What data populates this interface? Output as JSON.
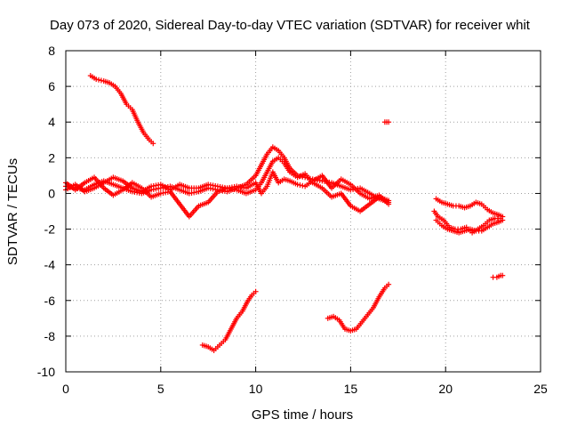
{
  "chart_data": {
    "type": "scatter",
    "title": "Day 073 of 2020, Sidereal Day-to-day VTEC variation (SDTVAR) for receiver whit",
    "xlabel": "GPS time / hours",
    "ylabel": "SDTVAR / TECUs",
    "xlim": [
      0,
      25
    ],
    "ylim": [
      -10,
      8
    ],
    "xticks": [
      0,
      5,
      10,
      15,
      20,
      25
    ],
    "yticks": [
      -10,
      -8,
      -6,
      -4,
      -2,
      0,
      2,
      4,
      6,
      8
    ],
    "xtick_labels": [
      "0",
      "5",
      "10",
      "15",
      "20",
      "25"
    ],
    "ytick_labels": [
      "-10",
      "-8",
      "-6",
      "-4",
      "-2",
      "0",
      "2",
      "4",
      "6",
      "8"
    ],
    "grid": true,
    "marker": "+",
    "color": "#ff0000",
    "series": [
      {
        "name": "upper-left-arc",
        "x": [
          1.3,
          1.6,
          2.0,
          2.3,
          2.6,
          2.9,
          3.2,
          3.5,
          3.8,
          4.1,
          4.4,
          4.6
        ],
        "y": [
          6.6,
          6.4,
          6.3,
          6.2,
          6.0,
          5.6,
          5.0,
          4.7,
          4.0,
          3.4,
          3.0,
          2.8
        ]
      },
      {
        "name": "lower-left-arc",
        "x": [
          7.2,
          7.5,
          7.8,
          8.1,
          8.4,
          8.7,
          9.0,
          9.3,
          9.6,
          9.8,
          10.0
        ],
        "y": [
          -8.5,
          -8.6,
          -8.8,
          -8.5,
          -8.2,
          -7.6,
          -7.0,
          -6.6,
          -6.0,
          -5.7,
          -5.5
        ]
      },
      {
        "name": "lower-mid-arc",
        "x": [
          13.8,
          14.1,
          14.4,
          14.7,
          15.0,
          15.3,
          15.6,
          15.9,
          16.2,
          16.5,
          16.8,
          17.0
        ],
        "y": [
          -7.0,
          -6.9,
          -7.1,
          -7.6,
          -7.7,
          -7.6,
          -7.2,
          -6.8,
          -6.4,
          -5.8,
          -5.3,
          -5.1
        ]
      },
      {
        "name": "isolated-high",
        "x": [
          16.8,
          16.9,
          17.0
        ],
        "y": [
          4.0,
          4.0,
          4.0
        ]
      },
      {
        "name": "isolated-low",
        "x": [
          22.5,
          22.7,
          22.9,
          23.0
        ],
        "y": [
          -4.7,
          -4.7,
          -4.6,
          -4.6
        ]
      },
      {
        "name": "main-band-a",
        "x": [
          0.0,
          0.5,
          1.0,
          1.5,
          2.0,
          2.5,
          3.0,
          3.5,
          4.0,
          4.5,
          5.0,
          5.5,
          6.0,
          6.5,
          7.0,
          7.5,
          8.0,
          8.5,
          9.0,
          9.5,
          10.0,
          10.3,
          10.6,
          10.9,
          11.2,
          11.5,
          11.8,
          12.2,
          12.6,
          13.0,
          13.5,
          14.0,
          14.5,
          15.0,
          15.5,
          16.0,
          16.5,
          17.0
        ],
        "y": [
          0.4,
          0.3,
          0.2,
          0.5,
          0.7,
          0.5,
          0.3,
          0.1,
          0.0,
          0.2,
          0.3,
          0.4,
          0.2,
          0.0,
          0.1,
          0.3,
          0.2,
          0.1,
          0.3,
          0.5,
          1.0,
          1.6,
          2.2,
          2.6,
          2.4,
          2.0,
          1.4,
          1.0,
          0.9,
          0.8,
          0.7,
          0.6,
          0.4,
          0.2,
          0.3,
          0.0,
          -0.3,
          -0.5
        ]
      },
      {
        "name": "main-band-b",
        "x": [
          0.0,
          0.5,
          1.0,
          1.5,
          2.0,
          2.5,
          3.0,
          3.5,
          4.0,
          4.5,
          5.0,
          5.5,
          6.0,
          6.5,
          7.0,
          7.5,
          8.0,
          8.5,
          9.0,
          9.5,
          10.0,
          10.3,
          10.6,
          10.9,
          11.2,
          11.5,
          11.8,
          12.2,
          12.6,
          13.0,
          13.5,
          14.0,
          14.5,
          15.0,
          15.5,
          16.0,
          16.5,
          17.0
        ],
        "y": [
          0.6,
          0.2,
          0.6,
          0.9,
          0.3,
          -0.1,
          0.2,
          0.6,
          0.3,
          -0.2,
          0.0,
          0.1,
          -0.6,
          -1.3,
          -0.7,
          -0.5,
          0.1,
          0.3,
          0.2,
          0.0,
          0.2,
          0.6,
          1.2,
          1.8,
          2.0,
          1.7,
          1.2,
          0.9,
          1.1,
          0.6,
          0.3,
          -0.2,
          0.0,
          -0.7,
          -1.0,
          -0.6,
          -0.2,
          -0.4
        ]
      },
      {
        "name": "main-band-c",
        "x": [
          0.0,
          0.5,
          1.0,
          1.5,
          2.0,
          2.5,
          3.0,
          3.5,
          4.0,
          4.5,
          5.0,
          5.5,
          6.0,
          6.5,
          7.0,
          7.5,
          8.0,
          8.5,
          9.0,
          9.5,
          10.0,
          10.3,
          10.6,
          10.9,
          11.2,
          11.5,
          11.8,
          12.2,
          12.6,
          13.0,
          13.5,
          14.0,
          14.5,
          15.0,
          15.5,
          16.0,
          16.5,
          17.0
        ],
        "y": [
          0.2,
          0.5,
          0.1,
          0.3,
          0.6,
          0.9,
          0.7,
          0.3,
          0.1,
          0.4,
          0.5,
          0.2,
          0.5,
          0.3,
          0.3,
          0.5,
          0.4,
          0.3,
          0.4,
          0.3,
          0.6,
          0.0,
          0.4,
          1.2,
          0.6,
          0.8,
          0.7,
          0.5,
          0.4,
          0.7,
          1.0,
          0.3,
          0.8,
          0.5,
          0.0,
          -0.3,
          -0.1,
          -0.6
        ]
      },
      {
        "name": "right-band-upper",
        "x": [
          19.5,
          19.8,
          20.1,
          20.4,
          20.7,
          21.0,
          21.3,
          21.6,
          21.9,
          22.2,
          22.5,
          22.8,
          23.0
        ],
        "y": [
          -0.3,
          -0.5,
          -0.6,
          -0.7,
          -0.7,
          -0.8,
          -0.7,
          -0.5,
          -0.6,
          -0.9,
          -1.1,
          -1.2,
          -1.3
        ]
      },
      {
        "name": "right-band-lower",
        "x": [
          19.5,
          19.8,
          20.1,
          20.4,
          20.7,
          21.0,
          21.3,
          21.6,
          21.9,
          22.2,
          22.5,
          22.8,
          23.0
        ],
        "y": [
          -1.5,
          -1.8,
          -2.0,
          -2.1,
          -2.2,
          -2.1,
          -2.0,
          -2.1,
          -2.1,
          -1.9,
          -1.7,
          -1.6,
          -1.5
        ]
      },
      {
        "name": "right-band-link",
        "x": [
          19.4,
          19.6,
          19.9,
          20.2,
          20.5,
          20.8,
          21.1,
          21.4,
          21.7,
          22.0,
          22.3,
          22.6,
          22.9
        ],
        "y": [
          -1.0,
          -1.3,
          -1.5,
          -1.9,
          -2.0,
          -2.0,
          -1.9,
          -2.2,
          -2.0,
          -1.8,
          -1.5,
          -1.4,
          -1.4
        ]
      }
    ]
  }
}
